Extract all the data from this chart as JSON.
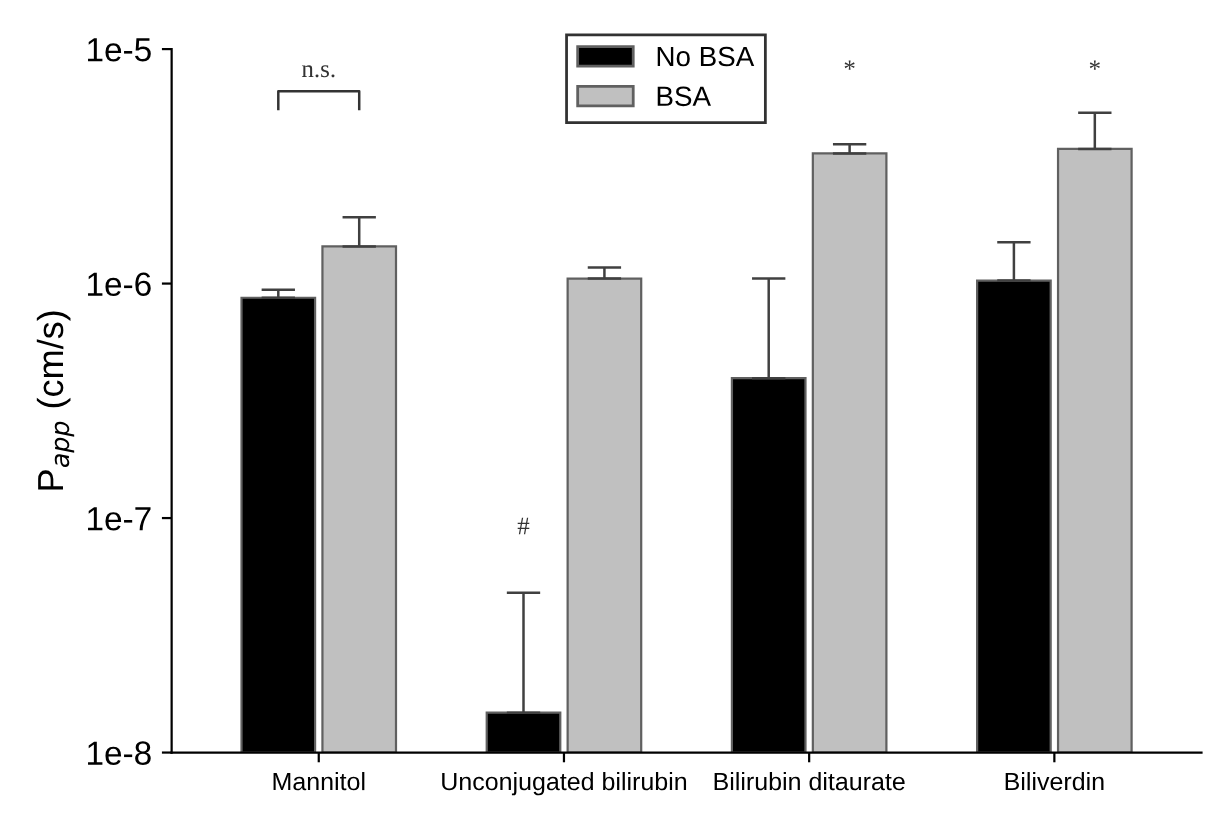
{
  "chart_data": {
    "type": "bar",
    "ylabel": "P$_{app}$ (cm/s)",
    "log": "y",
    "categories": [
      "Mannitol",
      "Unconjugated bilirubin",
      "Bilirubin ditaurate",
      "Biliverdin"
    ],
    "series": [
      {
        "name": "No BSA",
        "color": "#000000",
        "values": [
          8.7e-07,
          1.48e-08,
          3.95e-07,
          1.03e-06
        ],
        "errors": [
          [
            8.7e-07,
            9.4e-07
          ],
          [
            1.48e-08,
            4.8e-08
          ],
          [
            3.95e-07,
            1.05e-06
          ],
          [
            1.03e-06,
            1.5e-06
          ]
        ]
      },
      {
        "name": "BSA",
        "color": "#c0c0c0",
        "values": [
          1.44e-06,
          1.05e-06,
          3.59e-06,
          3.75e-06
        ],
        "errors": [
          [
            1.44e-06,
            1.92e-06
          ],
          [
            1.05e-06,
            1.17e-06
          ],
          [
            3.59e-06,
            3.93e-06
          ],
          [
            3.75e-06,
            5.35e-06
          ]
        ]
      }
    ],
    "ylim": [
      1e-08,
      1e-05
    ],
    "yticks": [
      {
        "value": 1e-08,
        "label": "1e-8"
      },
      {
        "value": 1e-07,
        "label": "1e-7"
      },
      {
        "value": 1e-06,
        "label": "1e-6"
      },
      {
        "value": 1e-05,
        "label": "1e-5"
      }
    ],
    "annotations": [
      "n.s.",
      {
        "text": "#",
        "x": "Unconjugated bilirubin",
        "y": 8.1e-08
      },
      "*",
      "*"
    ],
    "legend": "top",
    "grid": false
  }
}
